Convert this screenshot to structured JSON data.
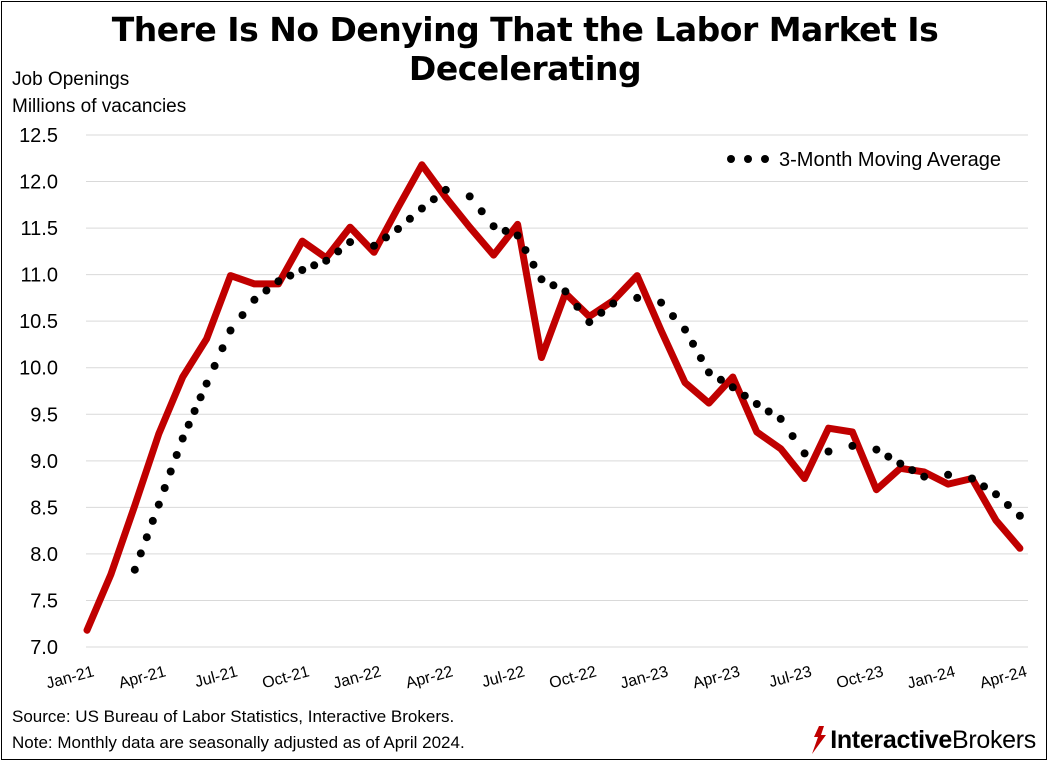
{
  "title": "There Is No Denying That the Labor Market Is Decelerating",
  "source_line": "Source: US Bureau of Labor Statistics, Interactive Brokers.",
  "note_line": "Note: Monthly data are seasonally adjusted as of April 2024.",
  "logo": {
    "part1": "Interactive",
    "part2": "Brokers"
  },
  "colors": {
    "series": "#c00000",
    "moving_average": "#000000",
    "grid": "#d9d9d9"
  },
  "chart_data": {
    "type": "line",
    "title": "There Is No Denying That the Labor Market Is Decelerating",
    "ylabel_line1": "Job Openings",
    "ylabel_line2": "Millions of vacancies",
    "xlabel": "",
    "ylim": [
      7.0,
      12.5
    ],
    "yticks": [
      "12.5",
      "12.0",
      "11.5",
      "11.0",
      "10.5",
      "10.0",
      "9.5",
      "9.0",
      "8.5",
      "8.0",
      "7.5",
      "7.0"
    ],
    "grid": "horizontal",
    "legend_position": "top-right",
    "x": [
      "Jan-21",
      "Feb-21",
      "Mar-21",
      "Apr-21",
      "May-21",
      "Jun-21",
      "Jul-21",
      "Aug-21",
      "Sep-21",
      "Oct-21",
      "Nov-21",
      "Dec-21",
      "Jan-22",
      "Feb-22",
      "Mar-22",
      "Apr-22",
      "May-22",
      "Jun-22",
      "Jul-22",
      "Aug-22",
      "Sep-22",
      "Oct-22",
      "Nov-22",
      "Dec-22",
      "Jan-23",
      "Feb-23",
      "Mar-23",
      "Apr-23",
      "May-23",
      "Jun-23",
      "Jul-23",
      "Aug-23",
      "Sep-23",
      "Oct-23",
      "Nov-23",
      "Dec-23",
      "Jan-24",
      "Feb-24",
      "Mar-24",
      "Apr-24"
    ],
    "xtick_labels": [
      "Jan-21",
      "Apr-21",
      "Jul-21",
      "Oct-21",
      "Jan-22",
      "Apr-22",
      "Jul-22",
      "Oct-22",
      "Jan-23",
      "Apr-23",
      "Jul-23",
      "Oct-23",
      "Jan-24",
      "Apr-24"
    ],
    "series": [
      {
        "values": [
          7.18,
          7.78,
          8.52,
          9.29,
          9.9,
          10.31,
          10.99,
          10.9,
          10.9,
          11.36,
          11.18,
          11.51,
          11.24,
          11.72,
          12.18,
          11.83,
          11.51,
          11.21,
          11.54,
          10.11,
          10.8,
          10.55,
          10.72,
          10.99,
          10.4,
          9.84,
          9.62,
          9.9,
          9.31,
          9.13,
          8.81,
          9.35,
          9.31,
          8.69,
          8.92,
          8.88,
          8.75,
          8.81,
          8.36,
          8.06
        ]
      },
      {
        "name": "3-Month Moving Average",
        "values": [
          null,
          null,
          7.83,
          8.53,
          9.24,
          9.83,
          10.4,
          10.73,
          10.93,
          11.05,
          11.15,
          11.35,
          11.31,
          11.49,
          11.71,
          11.91,
          11.84,
          11.52,
          11.42,
          10.95,
          10.82,
          10.49,
          10.69,
          10.75,
          10.7,
          10.41,
          9.95,
          9.79,
          9.61,
          9.45,
          9.08,
          9.1,
          9.16,
          9.12,
          8.97,
          8.83,
          8.85,
          8.81,
          8.64,
          8.41
        ]
      }
    ]
  }
}
